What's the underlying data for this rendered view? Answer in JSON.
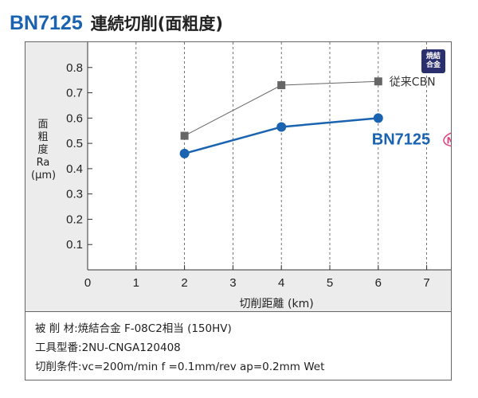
{
  "header": {
    "product": "BN7125",
    "subtitle": "連続切削(面粗度)"
  },
  "badge": {
    "line1": "焼結",
    "line2": "合金"
  },
  "chart_data": {
    "type": "line",
    "xlabel": "切削距離 (km)",
    "ylabel_chars": [
      "面",
      "粗",
      "度"
    ],
    "ylabel_symbol": "Ra",
    "ylabel_unit": "(μm)",
    "xlim": [
      0,
      7.5
    ],
    "ylim": [
      0,
      0.9
    ],
    "xticks": [
      0,
      1,
      2,
      3,
      4,
      5,
      6,
      7
    ],
    "yticks": [
      0.1,
      0.2,
      0.3,
      0.4,
      0.5,
      0.6,
      0.7,
      0.8
    ],
    "grid": "vertical",
    "series": [
      {
        "name": "従来CBN",
        "x": [
          2,
          4,
          6
        ],
        "y": [
          0.53,
          0.73,
          0.745
        ],
        "color": "#666666",
        "marker": "square"
      },
      {
        "name": "BN7125",
        "x": [
          2,
          4,
          6
        ],
        "y": [
          0.46,
          0.565,
          0.6
        ],
        "color": "#1a63b0",
        "marker": "circle",
        "tag": "New"
      }
    ]
  },
  "conditions": [
    {
      "label": "被 削 材",
      "value": "焼結合金 F-08C2相当 (150HV)"
    },
    {
      "label": "工具型番",
      "value": "2NU-CNGA120408"
    },
    {
      "label": "切削条件",
      "value": "vc=200m/min  f =0.1mm/rev  ap=0.2mm  Wet"
    }
  ]
}
